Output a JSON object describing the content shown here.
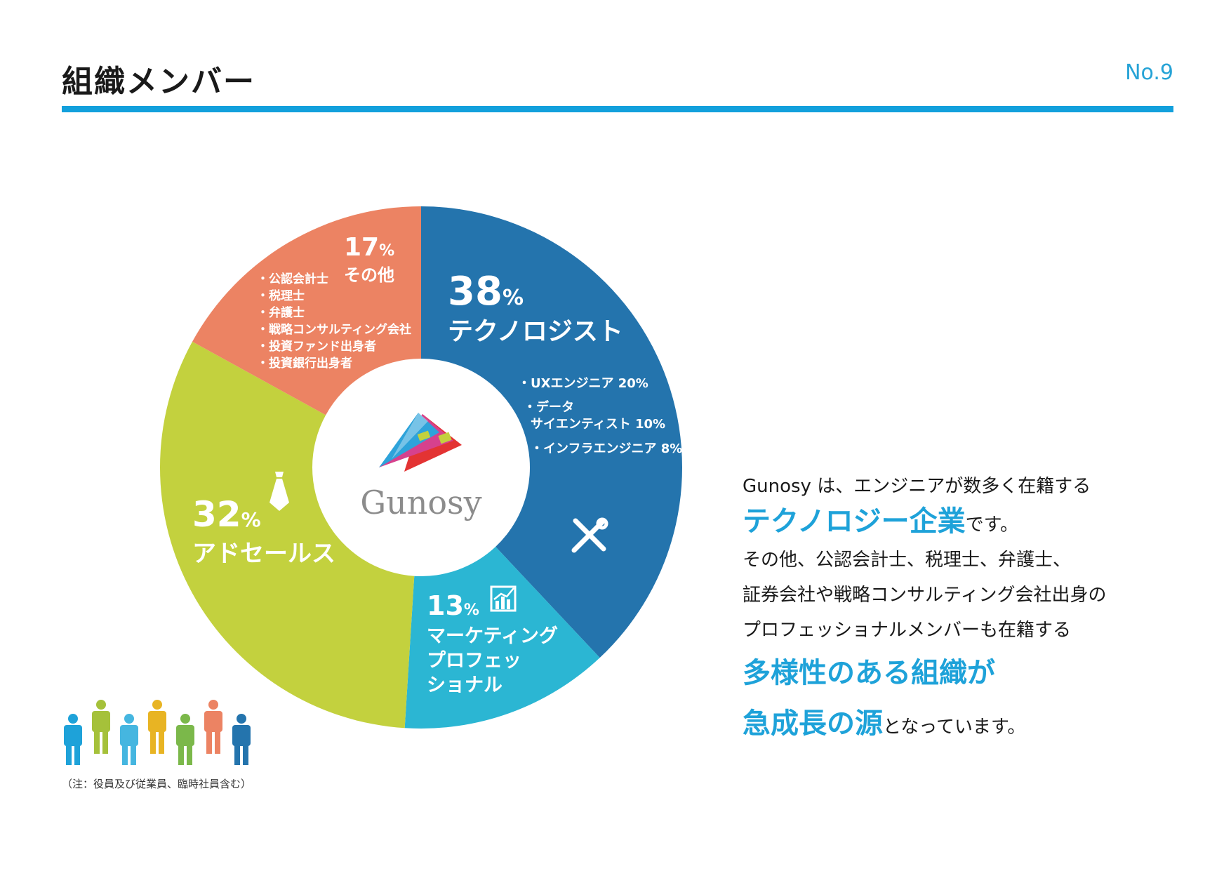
{
  "header": {
    "title": "組織メンバー",
    "page_no": "No.9"
  },
  "colors": {
    "accent": "#12a0dc",
    "technologist": "#2474ad",
    "marketing": "#2bb6d3",
    "adsales": "#c3d13e",
    "other": "#ec8363"
  },
  "chart_data": {
    "type": "pie",
    "title": "",
    "center_label": "Gunosy",
    "slices": [
      {
        "pct_value": "38",
        "pct_unit": "%",
        "value": 38,
        "label_lines": [
          "テクノロジスト"
        ],
        "color": "#2474ad",
        "icon": "tools-icon",
        "details": [
          "・UXエンジニア 20%",
          "・データ",
          "サイエンティスト 10%",
          "・インフラエンジニア 8%"
        ]
      },
      {
        "pct_value": "13",
        "pct_unit": "%",
        "value": 13,
        "label_lines": [
          "マーケティング",
          "プロフェッ",
          "ショナル"
        ],
        "color": "#2bb6d3",
        "icon": "chart-icon",
        "details": []
      },
      {
        "pct_value": "32",
        "pct_unit": "%",
        "value": 32,
        "label_lines": [
          "アドセールス"
        ],
        "color": "#c3d13e",
        "icon": "necktie-icon",
        "details": []
      },
      {
        "pct_value": "17",
        "pct_unit": "%",
        "value": 17,
        "label_lines": [
          "その他"
        ],
        "color": "#ec8363",
        "icon": "",
        "details": [
          "・公認会計士",
          "・税理士",
          "・弁護士",
          "・戦略コンサルティング会社",
          "・投資ファンド出身者",
          "・投資銀行出身者"
        ]
      }
    ]
  },
  "description": {
    "line1": "Gunosy は、エンジニアが数多く在籍する",
    "line2_highlight": "テクノロジー企業",
    "line2_rest": "です。",
    "line3": "その他、公認会計士、税理士、弁護士、",
    "line4": "証券会社や戦略コンサルティング会社出身の",
    "line5": "プロフェッショナルメンバーも在籍する",
    "line6_highlight": "多様性のある組織が",
    "line7_highlight": "急成長の源",
    "line7_rest": "となっています。"
  },
  "footnote": "（注：役員及び従業員、臨時社員含む）",
  "people_colors": [
    "#1ea2d9",
    "#a5c13a",
    "#45b6e0",
    "#e8b423",
    "#7bb84a",
    "#ec8363",
    "#2474ad"
  ]
}
